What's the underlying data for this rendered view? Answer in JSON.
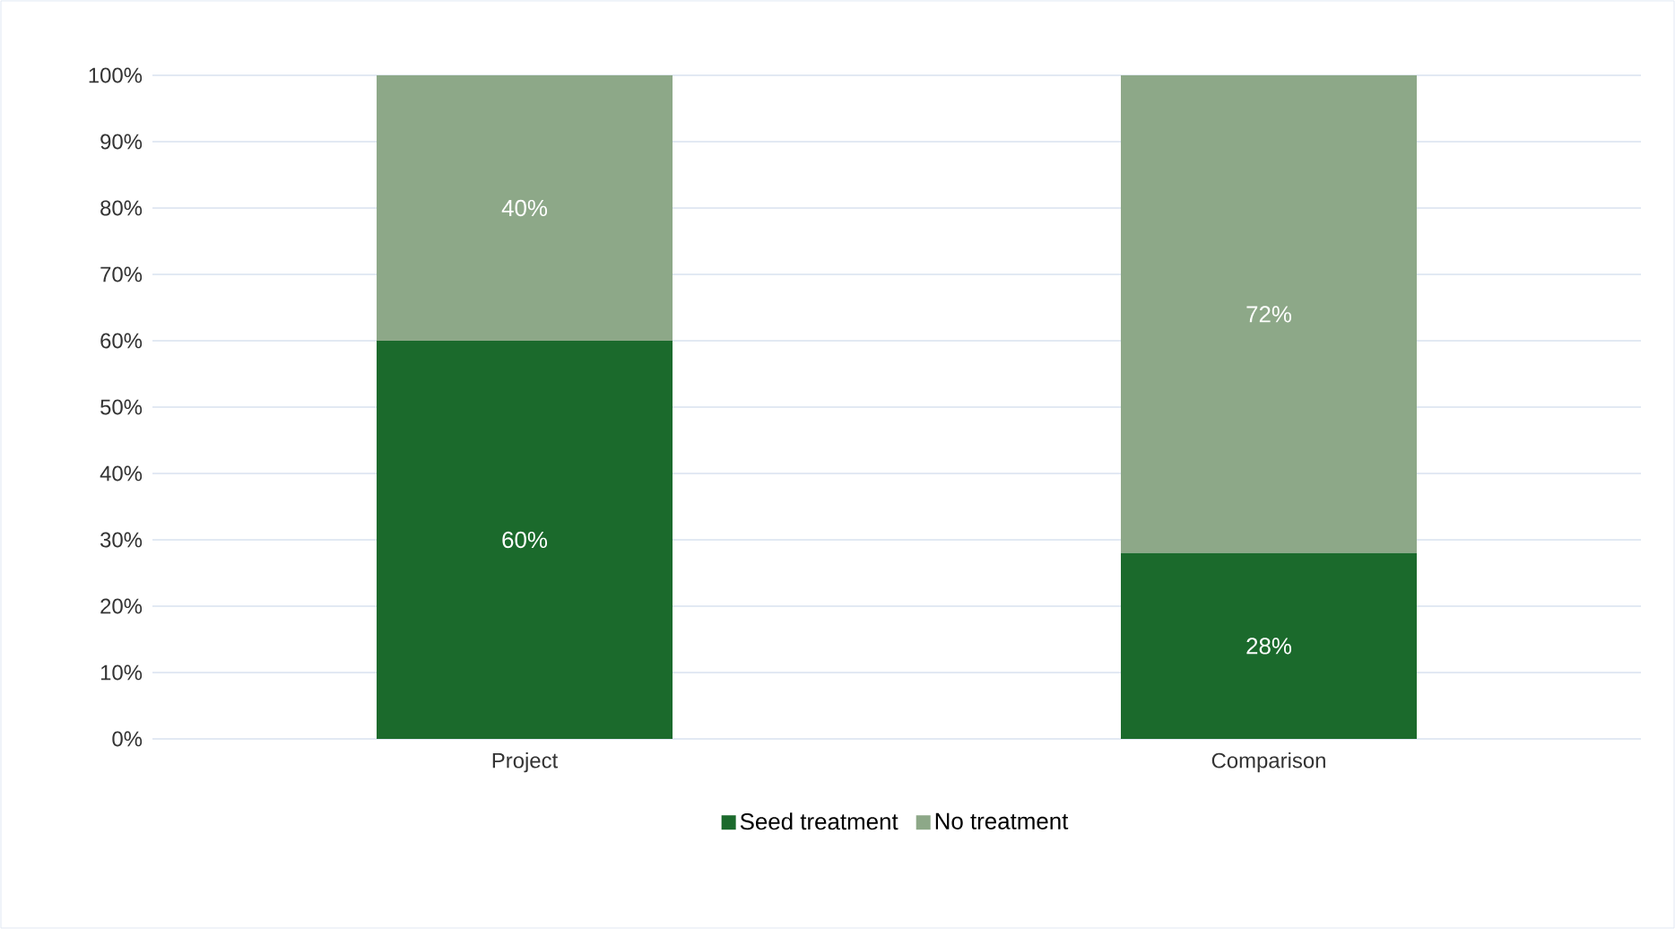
{
  "chart_data": {
    "type": "bar",
    "stacked": true,
    "categories": [
      "Project",
      "Comparison"
    ],
    "series": [
      {
        "name": "Seed treatment",
        "color": "#1b6a2c",
        "values": [
          60,
          28
        ],
        "value_labels": [
          "60%",
          "28%"
        ]
      },
      {
        "name": "No treatment",
        "color": "#8da888",
        "values": [
          40,
          72
        ],
        "value_labels": [
          "40%",
          "72%"
        ]
      }
    ],
    "ylim": [
      0,
      100
    ],
    "yticks": [
      {
        "value": 0,
        "label": "0%"
      },
      {
        "value": 10,
        "label": "10%"
      },
      {
        "value": 20,
        "label": "20%"
      },
      {
        "value": 30,
        "label": "30%"
      },
      {
        "value": 40,
        "label": "40%"
      },
      {
        "value": 50,
        "label": "50%"
      },
      {
        "value": 60,
        "label": "60%"
      },
      {
        "value": 70,
        "label": "70%"
      },
      {
        "value": 80,
        "label": "80%"
      },
      {
        "value": 90,
        "label": "90%"
      },
      {
        "value": 100,
        "label": "100%"
      }
    ],
    "grid": "y",
    "legend": "bottom"
  }
}
